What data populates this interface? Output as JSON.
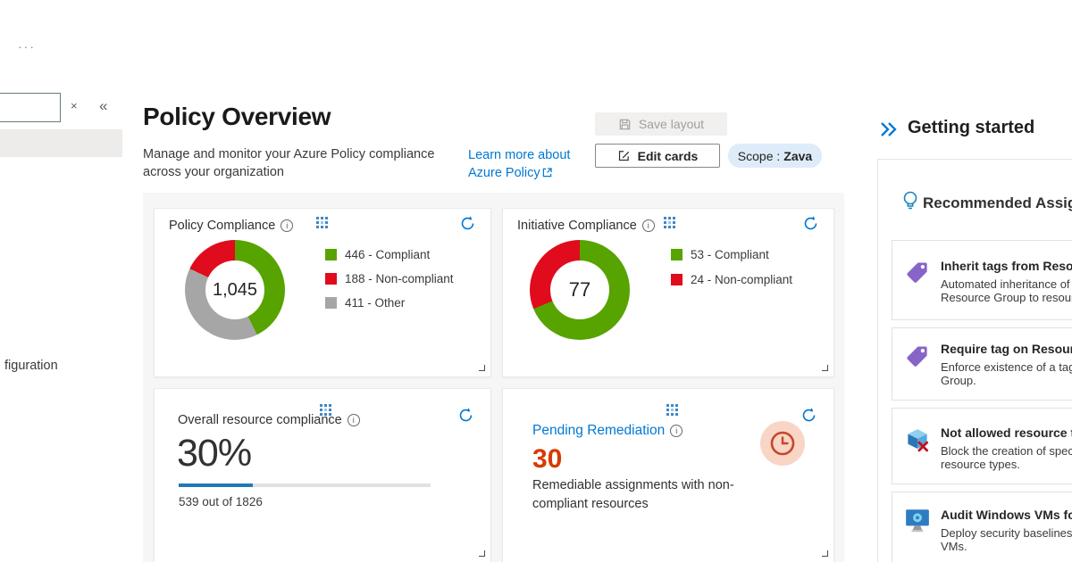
{
  "theme": {
    "accent": "#0078d4",
    "compliant_green": "#57a300",
    "noncompliant_red": "#e00b1c",
    "other_gray": "#a6a6a6",
    "pending_orange": "#d83b01",
    "progress_blue": "#2179b5"
  },
  "icons": {
    "ellipsis": "···",
    "clear": "×",
    "collapse": "«",
    "info": "i"
  },
  "rail": {
    "partial_item": "figuration"
  },
  "header": {
    "title": "Policy Overview",
    "subtitle": "Manage and monitor your Azure Policy compliance across your organization",
    "learn_more": "Learn more about Azure Policy",
    "save_layout": "Save layout",
    "edit_cards": "Edit cards",
    "scope_label": "Scope :",
    "scope_value": "Zava"
  },
  "chart_data": [
    {
      "type": "pie",
      "title": "Policy Compliance",
      "total": 1045,
      "total_label": "1,045",
      "legend_position": "right",
      "segments": [
        {
          "label": "Compliant",
          "value": 446,
          "color": "#57a300",
          "legend": "446 - Compliant"
        },
        {
          "label": "Non-compliant",
          "value": 188,
          "color": "#e00b1c",
          "legend": "188 - Non-compliant"
        },
        {
          "label": "Other",
          "value": 411,
          "color": "#a6a6a6",
          "legend": "411 - Other"
        }
      ],
      "draw_order": [
        0,
        2,
        1
      ]
    },
    {
      "type": "pie",
      "title": "Initiative Compliance",
      "total": 77,
      "total_label": "77",
      "legend_position": "right",
      "segments": [
        {
          "label": "Compliant",
          "value": 53,
          "color": "#57a300",
          "legend": "53 - Compliant"
        },
        {
          "label": "Non-compliant",
          "value": 24,
          "color": "#e00b1c",
          "legend": "24 - Non-compliant"
        }
      ],
      "draw_order": [
        0,
        1
      ]
    },
    {
      "type": "bar",
      "title": "Overall resource compliance",
      "percent": 30,
      "percent_label": "30%",
      "value": 539,
      "total": 1826,
      "caption": "539 out of 1826",
      "bar_color": "#2179b5"
    }
  ],
  "cards": {
    "pending": {
      "title": "Pending Remediation",
      "count": "30",
      "description": "Remediable assignments with non-compliant resources"
    }
  },
  "getting_started": {
    "heading": "Getting started",
    "section_title": "Recommended Assign",
    "items": [
      {
        "icon": "tag-icon",
        "title": "Inherit tags from Resou",
        "desc1": "Automated inheritance of",
        "desc2": "Resource Group to resour"
      },
      {
        "icon": "tag-icon",
        "title": "Require tag on Resourc",
        "desc1": "Enforce existence of a tag",
        "desc2": "Group."
      },
      {
        "icon": "blocked-cube-icon",
        "title": "Not allowed resource t",
        "desc1": "Block the creation of spec",
        "desc2": "resource types."
      },
      {
        "icon": "vm-monitor-icon",
        "title": "Audit Windows VMs fo",
        "desc1": "Deploy security baselines",
        "desc2": "VMs."
      }
    ]
  }
}
